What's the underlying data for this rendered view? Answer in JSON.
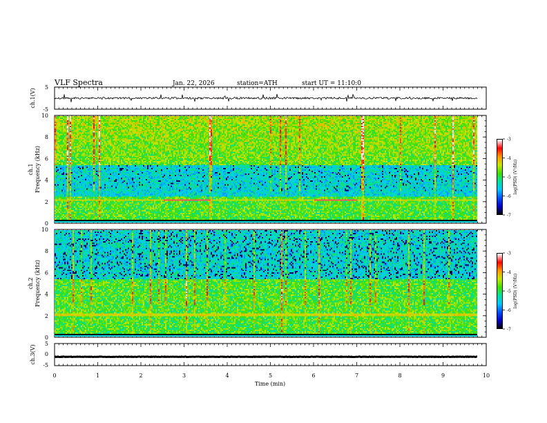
{
  "header": {
    "title": "VLF  Spectra",
    "date": "Jan. 22, 2026",
    "station": "station=ATH",
    "start_ut": "start  UT  =   11:10:0"
  },
  "chart_data": [
    {
      "type": "line",
      "panel": "ch1-waveform",
      "ylabel": "ch.1(V)",
      "ylim": [
        -5,
        5
      ],
      "y_ticks": [
        "5",
        "-5"
      ],
      "x_range_min": [
        0,
        9.8
      ],
      "typical_level_v": 0,
      "spike_range_v": [
        -2,
        2
      ]
    },
    {
      "type": "heatmap",
      "panel": "ch1-spectrogram",
      "ylabel_channel": "ch.1",
      "ylabel": "Frequency  (kHz)",
      "ylim": [
        0,
        10
      ],
      "y_ticks": [
        "0",
        "2",
        "4",
        "6",
        "8",
        "10"
      ],
      "x_range_min": [
        0,
        9.8
      ],
      "colorbar": {
        "label": "log(PSD) (V²/Hz)",
        "range": [
          -7,
          -3
        ],
        "ticks": [
          "-3",
          "-4",
          "-5",
          "-6",
          "-7"
        ]
      },
      "features": {
        "quiet_band_khz": [
          2.5,
          5.5
        ],
        "strong_tone_khz": 2.2,
        "strong_tone_segments_min": [
          [
            2.5,
            3.6
          ],
          [
            6.0,
            7.0
          ]
        ]
      }
    },
    {
      "type": "heatmap",
      "panel": "ch2-spectrogram",
      "ylabel_channel": "ch.2",
      "ylabel": "Frequency  (kHz)",
      "ylim": [
        0,
        10
      ],
      "y_ticks": [
        "0",
        "2",
        "4",
        "6",
        "8",
        "10"
      ],
      "x_range_min": [
        0,
        9.8
      ],
      "colorbar": {
        "label": "log(PSD) (V²/Hz)",
        "range": [
          -7,
          -3
        ],
        "ticks": [
          "-3",
          "-4",
          "-5",
          "-6",
          "-7"
        ]
      },
      "features": {
        "quiet_band_khz": [
          5.5,
          10
        ],
        "strong_tone_khz": 2.1
      }
    },
    {
      "type": "line",
      "panel": "ch3-waveform",
      "ylabel": "ch.3(V)",
      "ylim": [
        -5,
        5
      ],
      "y_ticks": [
        "5",
        "0",
        "-5"
      ],
      "x_range_min": [
        0,
        9.8
      ],
      "typical_level_v": -1
    }
  ],
  "x_axis": {
    "label": "Time  (min)",
    "range": [
      0,
      10
    ],
    "ticks": [
      "0",
      "1",
      "2",
      "3",
      "4",
      "5",
      "6",
      "7",
      "8",
      "9",
      "10"
    ]
  },
  "colors": {
    "frame": "#000000",
    "colormap": [
      "#000000",
      "#0000c8",
      "#0050ff",
      "#00c8ff",
      "#00e0a0",
      "#40e000",
      "#c8e600",
      "#ff9600",
      "#ff0000",
      "#ffffff"
    ]
  }
}
